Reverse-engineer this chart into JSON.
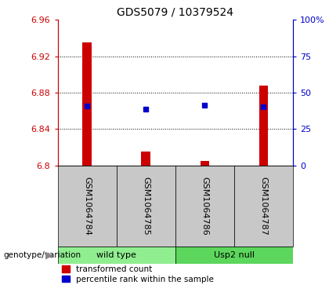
{
  "title": "GDS5079 / 10379524",
  "samples": [
    "GSM1064784",
    "GSM1064785",
    "GSM1064786",
    "GSM1064787"
  ],
  "group_labels": [
    "wild type",
    "Usp2 null"
  ],
  "red_values": [
    6.935,
    6.815,
    6.805,
    6.888
  ],
  "blue_values": [
    6.865,
    6.862,
    6.866,
    6.864
  ],
  "ylim": [
    6.8,
    6.96
  ],
  "yticks": [
    6.8,
    6.84,
    6.88,
    6.92,
    6.96
  ],
  "right_yticks": [
    0,
    25,
    50,
    75,
    100
  ],
  "right_ylim": [
    0,
    100
  ],
  "bar_color": "#CC0000",
  "dot_color": "#0000CC",
  "axis_color_left": "#CC0000",
  "axis_color_right": "#0000CC",
  "legend_items": [
    "transformed count",
    "percentile rank within the sample"
  ],
  "genotype_label": "genotype/variation",
  "group_split": 2,
  "wt_color": "#90EE90",
  "null_color": "#5CD65C",
  "sample_bg": "#C8C8C8",
  "title_fontsize": 10,
  "tick_fontsize": 8,
  "label_fontsize": 8,
  "legend_fontsize": 7.5
}
